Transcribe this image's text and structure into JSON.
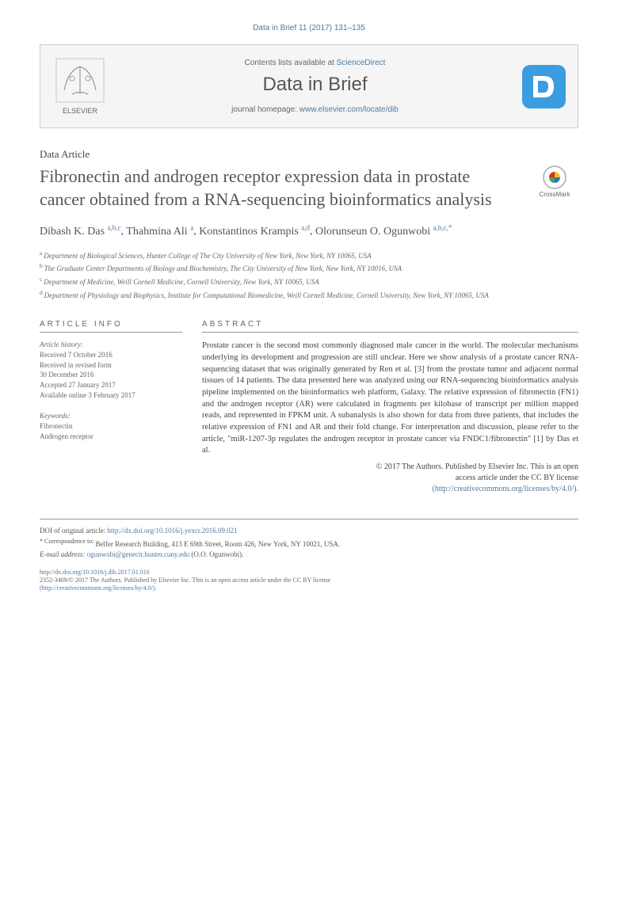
{
  "topCitation": "Data in Brief 11 (2017) 131–135",
  "headerBox": {
    "contentsPrefix": "Contents lists available at ",
    "contentsLink": "ScienceDirect",
    "journalName": "Data in Brief",
    "homepagePrefix": "journal homepage: ",
    "homepageLink": "www.elsevier.com/locate/dib",
    "elsevierAlt": "ELSEVIER"
  },
  "articleType": "Data Article",
  "title": "Fibronectin and androgen receptor expression data in prostate cancer obtained from a RNA-sequencing bioinformatics analysis",
  "crossmark": "CrossMark",
  "authors": [
    {
      "name": "Dibash K. Das",
      "sup": "a,b,c"
    },
    {
      "name": "Thahmina Ali",
      "sup": "a"
    },
    {
      "name": "Konstantinos Krampis",
      "sup": "a,d"
    },
    {
      "name": "Olorunseun O. Ogunwobi",
      "sup": "a,b,c,*"
    }
  ],
  "affiliations": [
    {
      "sup": "a",
      "text": "Department of Biological Sciences, Hunter College of The City University of New York, New York, NY 10065, USA"
    },
    {
      "sup": "b",
      "text": "The Graduate Center Departments of Biology and Biochemistry, The City University of New York, New York, NY 10016, USA"
    },
    {
      "sup": "c",
      "text": "Department of Medicine, Weill Cornell Medicine, Cornell University, New York, NY 10065, USA"
    },
    {
      "sup": "d",
      "text": "Department of Physiology and Biophysics, Institute for Computational Biomedicine, Weill Cornell Medicine, Cornell University, New York, NY 10065, USA"
    }
  ],
  "articleInfo": {
    "heading": "ARTICLE INFO",
    "historyLabel": "Article history:",
    "history": "Received 7 October 2016\nReceived in revised form\n30 December 2016\nAccepted 27 January 2017\nAvailable online 3 February 2017",
    "keywordsLabel": "Keywords:",
    "keywords": "Fibronectin\nAndrogen receptor"
  },
  "abstract": {
    "heading": "ABSTRACT",
    "text": "Prostate cancer is the second most commonly diagnosed male cancer in the world. The molecular mechanisms underlying its development and progression are still unclear. Here we show analysis of a prostate cancer RNA-sequencing dataset that was originally generated by Ren et al. [3] from the prostate tumor and adjacent normal tissues of 14 patients. The data presented here was analyzed using our RNA-sequencing bioinformatics analysis pipeline implemented on the bioinformatics web platform, Galaxy. The relative expression of fibronectin (FN1) and the androgen receptor (AR) were calculated in fragments per kilobase of transcript per million mapped reads, and represented in FPKM unit. A subanalysis is also shown for data from three patients, that includes the relative expression of FN1 and AR and their fold change. For interpretation and discussion, please refer to the article, \"miR-1207-3p regulates the androgen receptor in prostate cancer via FNDC1/fibronectin\" [1] by Das et al."
  },
  "copyright": {
    "line1": "© 2017 The Authors. Published by Elsevier Inc. This is an open",
    "line2": "access article under the CC BY license",
    "link": "(http://creativecommons.org/licenses/by/4.0/)."
  },
  "footer": {
    "doiOriginalLabel": "DOI of original article: ",
    "doiOriginalLink": "http://dx.doi.org/10.1016/j.yexcr.2016.09.021",
    "correspondenceLabel": "* Correspondence to: ",
    "correspondence": "Belfer Research Building, 413 E 69th Street, Room 426, New York, NY 10021, USA.",
    "emailLabel": "E-mail address: ",
    "email": "ogunwobi@genectr.hunter.cuny.edu",
    "emailSuffix": " (O.O. Ogunwobi).",
    "doiLink": "http://dx.doi.org/10.1016/j.dib.2017.01.016",
    "license": "2352-3409/© 2017 The Authors. Published by Elsevier Inc. This is an open access article under the CC BY license",
    "licenseLink": "(http://creativecommons.org/licenses/by/4.0/)."
  },
  "colors": {
    "link": "#5078a0",
    "text": "#444",
    "border": "#cccccc",
    "headerBg": "#f5f5f5"
  }
}
